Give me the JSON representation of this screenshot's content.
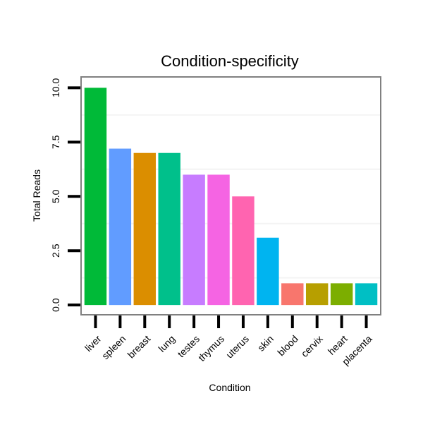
{
  "chart_data": {
    "type": "bar",
    "title": "Condition-specificity",
    "xlabel": "Condition",
    "ylabel": "Total Reads",
    "categories": [
      "liver",
      "spleen",
      "breast",
      "lung",
      "testes",
      "thymus",
      "uterus",
      "skin",
      "blood",
      "cervix",
      "heart",
      "placenta"
    ],
    "values": [
      10,
      7.2,
      7,
      7,
      6,
      6,
      5,
      3.1,
      1,
      1,
      1,
      1
    ],
    "colors": [
      "#00BA38",
      "#619CFF",
      "#DB8E00",
      "#00C08B",
      "#C77CFF",
      "#F564E3",
      "#FF64B0",
      "#00B4F0",
      "#F8766D",
      "#B79F00",
      "#7CAE00",
      "#00BFC4"
    ],
    "yticks": [
      0,
      2.5,
      5,
      7.5,
      10
    ],
    "ytick_labels": [
      "0.0",
      "2.5",
      "5.0",
      "7.5",
      "10.0"
    ],
    "ylim": [
      -0.45,
      10.5
    ],
    "grid": true,
    "legend": "none"
  }
}
